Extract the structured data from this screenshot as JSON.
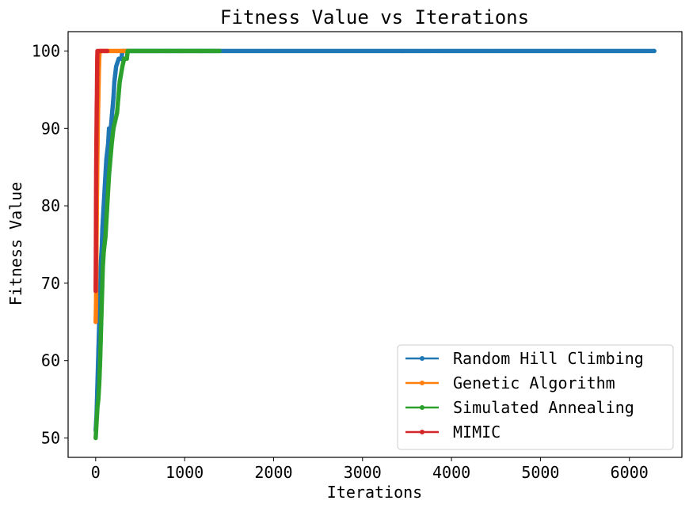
{
  "chart_data": {
    "type": "line",
    "title": "Fitness Value vs Iterations",
    "xlabel": "Iterations",
    "ylabel": "Fitness Value",
    "xlim": [
      -310,
      6590
    ],
    "ylim": [
      47.5,
      102.5
    ],
    "xticks": [
      0,
      1000,
      2000,
      3000,
      4000,
      5000,
      6000
    ],
    "yticks": [
      50,
      60,
      70,
      80,
      90,
      100
    ],
    "grid": false,
    "legend_position": "lower-right",
    "marker": "circle",
    "series": [
      {
        "name": "Random Hill Climbing",
        "color": "#1f77b4",
        "points": [
          [
            0,
            51
          ],
          [
            5,
            52
          ],
          [
            10,
            53
          ],
          [
            15,
            55
          ],
          [
            20,
            57
          ],
          [
            25,
            59
          ],
          [
            30,
            61
          ],
          [
            35,
            63
          ],
          [
            40,
            65
          ],
          [
            45,
            67
          ],
          [
            50,
            69
          ],
          [
            55,
            71
          ],
          [
            60,
            73
          ],
          [
            65,
            74
          ],
          [
            70,
            75
          ],
          [
            75,
            77
          ],
          [
            80,
            78
          ],
          [
            90,
            80
          ],
          [
            100,
            82
          ],
          [
            110,
            84
          ],
          [
            120,
            86
          ],
          [
            130,
            87
          ],
          [
            140,
            88
          ],
          [
            150,
            90
          ],
          [
            170,
            90
          ],
          [
            185,
            92
          ],
          [
            200,
            94
          ],
          [
            210,
            96
          ],
          [
            220,
            97
          ],
          [
            230,
            98
          ],
          [
            260,
            99
          ],
          [
            290,
            99
          ],
          [
            300,
            100
          ],
          [
            6280,
            100
          ]
        ]
      },
      {
        "name": "Genetic Algorithm",
        "color": "#ff7f0e",
        "points": [
          [
            0,
            65
          ],
          [
            5,
            68
          ],
          [
            10,
            76
          ],
          [
            15,
            82
          ],
          [
            20,
            87
          ],
          [
            25,
            91
          ],
          [
            30,
            94
          ],
          [
            35,
            97
          ],
          [
            40,
            99
          ],
          [
            45,
            100
          ],
          [
            350,
            100
          ]
        ]
      },
      {
        "name": "Simulated Annealing",
        "color": "#2ca02c",
        "points": [
          [
            0,
            50
          ],
          [
            5,
            51
          ],
          [
            10,
            52
          ],
          [
            15,
            53
          ],
          [
            20,
            54
          ],
          [
            30,
            55
          ],
          [
            40,
            57
          ],
          [
            50,
            60
          ],
          [
            55,
            62
          ],
          [
            60,
            64
          ],
          [
            65,
            66
          ],
          [
            70,
            68
          ],
          [
            75,
            70
          ],
          [
            80,
            72
          ],
          [
            90,
            74
          ],
          [
            100,
            75
          ],
          [
            110,
            76
          ],
          [
            120,
            78
          ],
          [
            130,
            80
          ],
          [
            140,
            82
          ],
          [
            150,
            84
          ],
          [
            165,
            86
          ],
          [
            180,
            88
          ],
          [
            200,
            90
          ],
          [
            220,
            91
          ],
          [
            240,
            92
          ],
          [
            255,
            94
          ],
          [
            270,
            96
          ],
          [
            285,
            97
          ],
          [
            300,
            98
          ],
          [
            320,
            99
          ],
          [
            350,
            99
          ],
          [
            360,
            100
          ],
          [
            1390,
            100
          ]
        ]
      },
      {
        "name": "MIMIC",
        "color": "#d62728",
        "points": [
          [
            0,
            69
          ],
          [
            2,
            73
          ],
          [
            4,
            80
          ],
          [
            6,
            85
          ],
          [
            8,
            88
          ],
          [
            10,
            90
          ],
          [
            12,
            93
          ],
          [
            14,
            94
          ],
          [
            16,
            97
          ],
          [
            18,
            99
          ],
          [
            20,
            100
          ],
          [
            130,
            100
          ]
        ]
      }
    ]
  }
}
